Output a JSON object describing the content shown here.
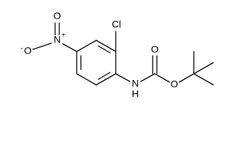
{
  "atoms": [
    {
      "label": "O",
      "charge": "-"
    },
    {
      "label": "N",
      "charge": "+"
    },
    {
      "label": "O"
    },
    {
      "label": "Cl"
    },
    {
      "label": "N"
    },
    {
      "label": "H"
    },
    {
      "label": "O"
    },
    {
      "label": "O"
    }
  ]
}
